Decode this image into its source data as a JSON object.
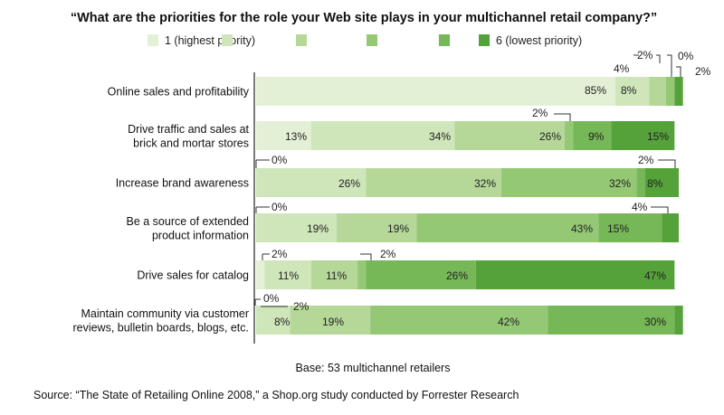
{
  "title": "“What are the priorities for the role your Web site plays in your multichannel retail company?”",
  "colors": [
    "#e4f0d6",
    "#cfe5ba",
    "#b5d899",
    "#94c875",
    "#76b757",
    "#55a23a"
  ],
  "footer": {
    "base": "Base: 53 multichannel retailers",
    "source": "Source: “The State of Retailing Online 2008,” a Shop.org study conducted by Forrester Research"
  },
  "chart_data": {
    "type": "bar",
    "orientation": "horizontal",
    "stacked": true,
    "categories": [
      [
        "Online sales and profitability"
      ],
      [
        "Drive traffic and sales at",
        "brick and mortar stores"
      ],
      [
        "Increase brand awareness"
      ],
      [
        "Be a source of extended",
        "product information"
      ],
      [
        "Drive sales for catalog"
      ],
      [
        "Maintain community via customer",
        "reviews, bulletin boards, blogs, etc."
      ]
    ],
    "legend": [
      {
        "label": "1 (highest priority)"
      },
      {
        "label": ""
      },
      {
        "label": ""
      },
      {
        "label": ""
      },
      {
        "label": ""
      },
      {
        "label": "6 (lowest priority)"
      }
    ],
    "series": [
      {
        "values": [
          85,
          13,
          0,
          0,
          2,
          0
        ]
      },
      {
        "values": [
          8,
          34,
          26,
          19,
          11,
          8
        ]
      },
      {
        "values": [
          4,
          26,
          32,
          19,
          11,
          19
        ]
      },
      {
        "values": [
          2,
          2,
          32,
          43,
          2,
          42
        ]
      },
      {
        "values": [
          0,
          9,
          2,
          15,
          26,
          30
        ]
      },
      {
        "values": [
          2,
          15,
          8,
          4,
          47,
          2
        ]
      }
    ],
    "segment_labels": [
      [
        "85%",
        "8%",
        "4%",
        "2%",
        "0%",
        "2%"
      ],
      [
        "13%",
        "34%",
        "26%",
        "2%",
        "9%",
        "15%"
      ],
      [
        "0%",
        "26%",
        "32%",
        "32%",
        "2%",
        "8%"
      ],
      [
        "0%",
        "19%",
        "19%",
        "43%",
        "15%",
        "4%"
      ],
      [
        "2%",
        "11%",
        "11%",
        "2%",
        "26%",
        "47%"
      ],
      [
        "0%",
        "8%",
        "19%",
        "42%",
        "30%",
        "2%"
      ]
    ]
  }
}
